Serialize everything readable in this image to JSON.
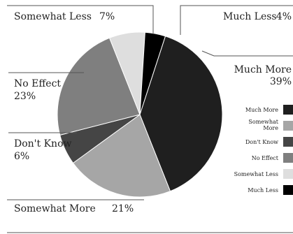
{
  "chart_data": {
    "type": "pie",
    "slices": [
      {
        "name": "Much More",
        "value": 39,
        "color": "#1f1f1f"
      },
      {
        "name": "Somewhat More",
        "value": 21,
        "color": "#a6a6a6"
      },
      {
        "name": "Don't Know",
        "value": 6,
        "color": "#454545"
      },
      {
        "name": "No Effect",
        "value": 23,
        "color": "#7f7f7f"
      },
      {
        "name": "Somewhat Less",
        "value": 7,
        "color": "#dedede"
      },
      {
        "name": "Much Less",
        "value": 4,
        "color": "#000000"
      }
    ],
    "data_labels": [
      {
        "name_text": "Much More",
        "value_text": "39%"
      },
      {
        "name_text": "Somewhat More",
        "value_text": "21%"
      },
      {
        "name_text": "Don't Know",
        "value_text": "6%"
      },
      {
        "name_text": "No Effect",
        "value_text": "23%"
      },
      {
        "name_text": "Somewhat Less",
        "value_text": "7%"
      },
      {
        "name_text": "Much Less",
        "value_text": "4%"
      }
    ],
    "legend": {
      "placement": "right",
      "entries": [
        {
          "label": "Much More",
          "color": "#1f1f1f"
        },
        {
          "label": "Somewhat More",
          "color": "#a6a6a6"
        },
        {
          "label": "Don't Know",
          "color": "#454545"
        },
        {
          "label": "No Effect",
          "color": "#7f7f7f"
        },
        {
          "label": "Somewhat Less",
          "color": "#dedede"
        },
        {
          "label": "Much Less",
          "color": "#000000"
        }
      ]
    }
  }
}
